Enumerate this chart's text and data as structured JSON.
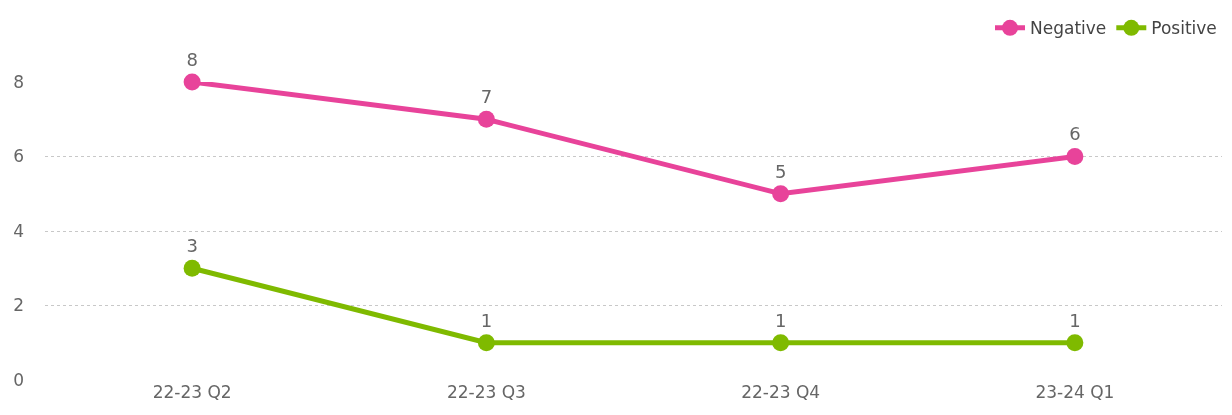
{
  "chart_data": {
    "type": "line",
    "categories": [
      "22-23 Q2",
      "22-23 Q3",
      "22-23 Q4",
      "23-24 Q1"
    ],
    "series": [
      {
        "name": "Negative",
        "color": "#e8439a",
        "values": [
          8,
          7,
          5,
          6
        ]
      },
      {
        "name": "Positive",
        "color": "#7fba00",
        "values": [
          3,
          1,
          1,
          1
        ]
      }
    ],
    "ylim": [
      0,
      8
    ],
    "yticks": [
      0,
      2,
      4,
      6,
      8
    ],
    "grid": "y",
    "legend": "top right",
    "marker": "circle",
    "line_style": "solid",
    "data_labels": true
  }
}
